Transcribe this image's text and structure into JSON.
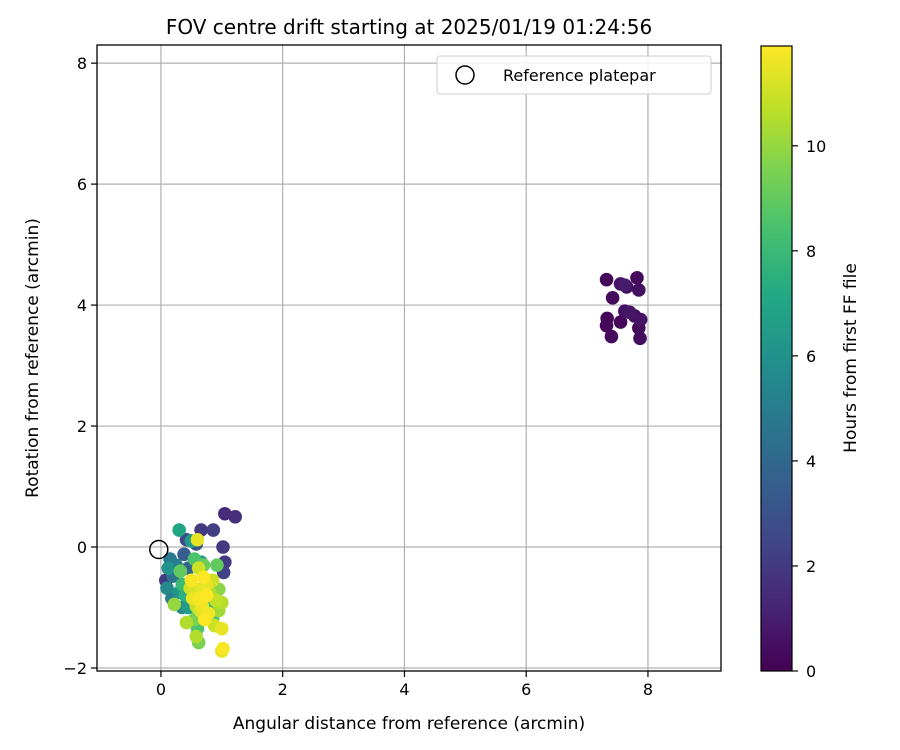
{
  "chart_data": {
    "type": "scatter",
    "title": "FOV centre drift starting at 2025/01/19 01:24:56",
    "xlabel": "Angular distance from reference (arcmin)",
    "ylabel": "Rotation from reference (arcmin)",
    "xlim": [
      -1.05,
      9.2
    ],
    "ylim": [
      -2.05,
      8.3
    ],
    "xticks": [
      0,
      2,
      4,
      6,
      8
    ],
    "yticks": [
      -2,
      0,
      2,
      4,
      6,
      8
    ],
    "grid": true,
    "legend": {
      "position": "top-right",
      "entries": [
        "Reference platepar"
      ]
    },
    "reference_point": {
      "x": 0,
      "y": 0
    },
    "colorbar": {
      "label": "Hours from first FF file",
      "colormap": "viridis",
      "range": [
        0,
        11.9
      ],
      "ticks": [
        0,
        2,
        4,
        6,
        8,
        10
      ]
    },
    "points": [
      {
        "x": 7.32,
        "y": 4.42,
        "t": 0.2
      },
      {
        "x": 7.42,
        "y": 4.12,
        "t": 0.3
      },
      {
        "x": 7.33,
        "y": 3.78,
        "t": 0.1
      },
      {
        "x": 7.32,
        "y": 3.66,
        "t": 0.2
      },
      {
        "x": 7.4,
        "y": 3.48,
        "t": 0.3
      },
      {
        "x": 7.55,
        "y": 4.35,
        "t": 0.6
      },
      {
        "x": 7.62,
        "y": 4.33,
        "t": 0.9
      },
      {
        "x": 7.65,
        "y": 4.3,
        "t": 0.4
      },
      {
        "x": 7.62,
        "y": 3.9,
        "t": 0.5
      },
      {
        "x": 7.7,
        "y": 3.88,
        "t": 0.7
      },
      {
        "x": 7.55,
        "y": 3.72,
        "t": 0.2
      },
      {
        "x": 7.78,
        "y": 3.82,
        "t": 0.4
      },
      {
        "x": 7.82,
        "y": 4.45,
        "t": 0.3
      },
      {
        "x": 7.85,
        "y": 4.25,
        "t": 0.5
      },
      {
        "x": 7.88,
        "y": 3.76,
        "t": 0.6
      },
      {
        "x": 7.85,
        "y": 3.62,
        "t": 0.3
      },
      {
        "x": 7.87,
        "y": 3.45,
        "t": 0.4
      },
      {
        "x": 1.05,
        "y": 0.55,
        "t": 1.5
      },
      {
        "x": 1.22,
        "y": 0.5,
        "t": 1.6
      },
      {
        "x": 0.66,
        "y": 0.28,
        "t": 2.0
      },
      {
        "x": 0.86,
        "y": 0.28,
        "t": 2.2
      },
      {
        "x": 0.42,
        "y": 0.12,
        "t": 2.5
      },
      {
        "x": 0.58,
        "y": 0.05,
        "t": 3.0
      },
      {
        "x": 1.02,
        "y": 0.0,
        "t": 2.0
      },
      {
        "x": 1.05,
        "y": -0.25,
        "t": 2.0
      },
      {
        "x": 1.03,
        "y": -0.42,
        "t": 2.3
      },
      {
        "x": 0.38,
        "y": -0.12,
        "t": 3.5
      },
      {
        "x": 0.45,
        "y": -0.35,
        "t": 3.8
      },
      {
        "x": 0.3,
        "y": 0.28,
        "t": 7.0
      },
      {
        "x": 0.5,
        "y": 0.1,
        "t": 6.5
      },
      {
        "x": 0.12,
        "y": -0.35,
        "t": 6.0
      },
      {
        "x": 0.08,
        "y": -0.55,
        "t": 2.0
      },
      {
        "x": 0.1,
        "y": -0.68,
        "t": 5.5
      },
      {
        "x": 0.2,
        "y": -0.48,
        "t": 4.5
      },
      {
        "x": 0.18,
        "y": -0.85,
        "t": 5.0
      },
      {
        "x": 0.22,
        "y": -0.95,
        "t": 10.0
      },
      {
        "x": 0.32,
        "y": -0.4,
        "t": 9.0
      },
      {
        "x": 0.35,
        "y": -0.62,
        "t": 8.0
      },
      {
        "x": 0.4,
        "y": -0.8,
        "t": 7.5
      },
      {
        "x": 0.45,
        "y": -1.0,
        "t": 6.5
      },
      {
        "x": 0.55,
        "y": -0.2,
        "t": 8.5
      },
      {
        "x": 0.6,
        "y": 0.12,
        "t": 11.5
      },
      {
        "x": 0.62,
        "y": -0.35,
        "t": 11.0
      },
      {
        "x": 0.66,
        "y": -0.25,
        "t": 6.5
      },
      {
        "x": 0.5,
        "y": -0.55,
        "t": 11.8
      },
      {
        "x": 0.55,
        "y": -0.7,
        "t": 11.2
      },
      {
        "x": 0.7,
        "y": -0.5,
        "t": 11.9
      },
      {
        "x": 0.75,
        "y": -0.62,
        "t": 11.5
      },
      {
        "x": 0.62,
        "y": -0.85,
        "t": 11.8
      },
      {
        "x": 0.68,
        "y": -0.98,
        "t": 11.6
      },
      {
        "x": 0.8,
        "y": -0.75,
        "t": 10.5
      },
      {
        "x": 0.85,
        "y": -0.55,
        "t": 11.0
      },
      {
        "x": 0.9,
        "y": -0.88,
        "t": 10.8
      },
      {
        "x": 0.95,
        "y": -1.05,
        "t": 10.2
      },
      {
        "x": 1.0,
        "y": -0.92,
        "t": 10.6
      },
      {
        "x": 0.78,
        "y": -1.1,
        "t": 11.7
      },
      {
        "x": 0.72,
        "y": -1.2,
        "t": 11.9
      },
      {
        "x": 0.85,
        "y": -1.18,
        "t": 8.5
      },
      {
        "x": 0.88,
        "y": -1.3,
        "t": 11.0
      },
      {
        "x": 1.0,
        "y": -1.35,
        "t": 11.5
      },
      {
        "x": 0.42,
        "y": -1.25,
        "t": 10.5
      },
      {
        "x": 0.55,
        "y": -1.2,
        "t": 9.5
      },
      {
        "x": 0.6,
        "y": -1.35,
        "t": 8.5
      },
      {
        "x": 0.58,
        "y": -1.48,
        "t": 10.5
      },
      {
        "x": 0.62,
        "y": -1.58,
        "t": 9.5
      },
      {
        "x": 1.02,
        "y": -1.68,
        "t": 11.8
      },
      {
        "x": 1.0,
        "y": -1.72,
        "t": 11.5
      },
      {
        "x": 0.52,
        "y": -0.85,
        "t": 11.5
      },
      {
        "x": 0.48,
        "y": -0.68,
        "t": 11.0
      },
      {
        "x": 0.35,
        "y": -1.0,
        "t": 5.5
      },
      {
        "x": 0.3,
        "y": -0.75,
        "t": 6.2
      },
      {
        "x": 0.25,
        "y": -0.3,
        "t": 5.0
      },
      {
        "x": 0.15,
        "y": -0.2,
        "t": 4.8
      },
      {
        "x": 0.92,
        "y": -0.3,
        "t": 9.0
      },
      {
        "x": 0.95,
        "y": -0.7,
        "t": 9.8
      },
      {
        "x": 0.7,
        "y": -0.3,
        "t": 9.2
      },
      {
        "x": 0.8,
        "y": -0.95,
        "t": 8.2
      },
      {
        "x": 0.65,
        "y": -1.05,
        "t": 11.3
      },
      {
        "x": 0.58,
        "y": -0.98,
        "t": 10.9
      },
      {
        "x": 0.75,
        "y": -0.8,
        "t": 11.9
      },
      {
        "x": 0.68,
        "y": -0.68,
        "t": 11.4
      }
    ]
  }
}
